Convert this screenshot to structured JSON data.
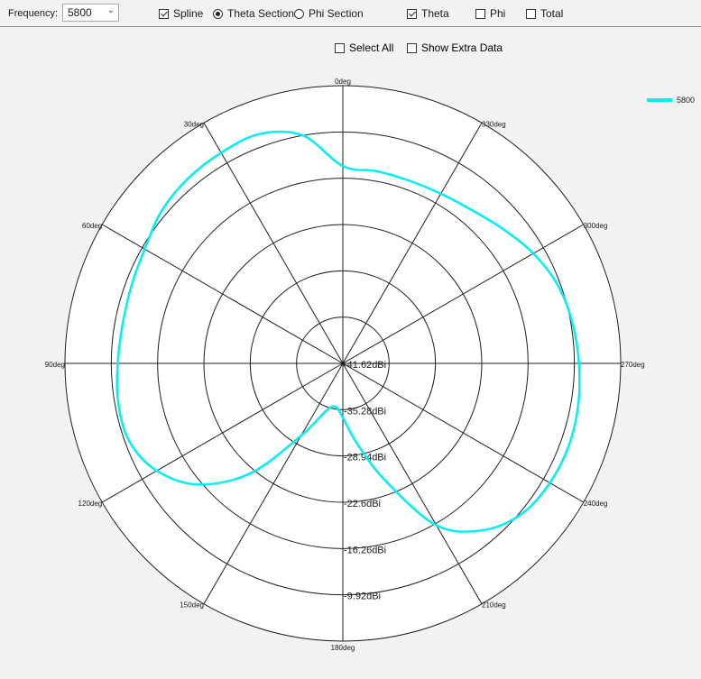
{
  "toolbar": {
    "frequency_label": "Frequency:",
    "frequency_value": "5800",
    "spline": {
      "label": "Spline",
      "checked": true
    },
    "section_options": [
      {
        "label": "Theta Section",
        "selected": true
      },
      {
        "label": "Phi Section",
        "selected": false
      }
    ],
    "component_options": [
      {
        "label": "Theta",
        "checked": true
      },
      {
        "label": "Phi",
        "checked": false
      },
      {
        "label": "Total",
        "checked": false
      }
    ]
  },
  "subbar": {
    "select_all": {
      "label": "Select All",
      "checked": false
    },
    "show_extra": {
      "label": "Show Extra Data",
      "checked": false
    }
  },
  "chart_data": {
    "type": "polar-line",
    "angle_direction": "counter-clockwise",
    "zero_location": "top",
    "angle_ticks": [
      "0deg",
      "30deg",
      "60deg",
      "90deg",
      "120deg",
      "150deg",
      "180deg",
      "210deg",
      "240deg",
      "270deg",
      "300deg",
      "330deg"
    ],
    "radial_ticks": [
      "-41.62dBi",
      "-35.28dBi",
      "-28.94dBi",
      "-22.6dBi",
      "-16.26dBi",
      "-9.92dBi"
    ],
    "rlim": [
      -41.62,
      -3.58
    ],
    "legend": {
      "position": "top-right",
      "entries": [
        {
          "name": "5800",
          "color": "#00f0f0"
        }
      ]
    },
    "series": [
      {
        "name": "5800",
        "color": "#00f0f0",
        "theta_deg": [
          0,
          10,
          20,
          30,
          40,
          50,
          60,
          70,
          80,
          90,
          100,
          110,
          120,
          130,
          140,
          150,
          160,
          170,
          180,
          190,
          200,
          210,
          220,
          230,
          240,
          250,
          260,
          270,
          280,
          290,
          300,
          310,
          320,
          330,
          340,
          350
        ],
        "gain_dbi": [
          -14.6,
          -9.9,
          -8.2,
          -8.3,
          -8.6,
          -9.2,
          -10.3,
          -10.8,
          -11.0,
          -10.8,
          -10.4,
          -10.5,
          -12.2,
          -15.8,
          -22.0,
          -30.2,
          -34.6,
          -35.6,
          -34.2,
          -30.5,
          -24.5,
          -16.0,
          -11.8,
          -9.6,
          -8.9,
          -8.7,
          -8.9,
          -9.3,
          -9.7,
          -10.3,
          -11.5,
          -13.0,
          -14.2,
          -14.8,
          -15.0,
          -14.9
        ]
      }
    ]
  }
}
